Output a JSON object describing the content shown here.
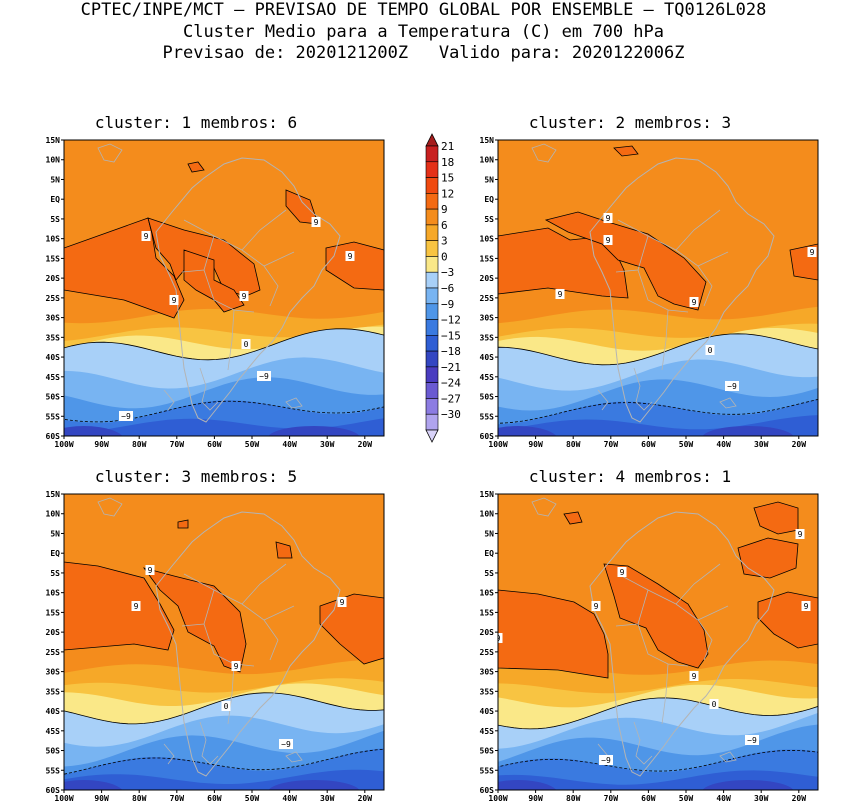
{
  "header": {
    "line1": "CPTEC/INPE/MCT – PREVISAO DE TEMPO GLOBAL POR ENSEMBLE – TQ0126L028",
    "line2": "Cluster Medio para a Temperatura (C) em 700 hPa",
    "line3": "Previsao de: 2020121200Z   Valido para: 2020122006Z"
  },
  "panels": [
    {
      "title": "cluster: 1   membros: 6"
    },
    {
      "title": "cluster: 2   membros: 3"
    },
    {
      "title": "cluster: 3   membros: 5"
    },
    {
      "title": "cluster: 4   membros: 1"
    }
  ],
  "axes": {
    "lat_labels": [
      "15N",
      "10N",
      "5N",
      "EQ",
      "5S",
      "10S",
      "15S",
      "20S",
      "25S",
      "30S",
      "35S",
      "40S",
      "45S",
      "50S",
      "55S",
      "60S"
    ],
    "lon_labels": [
      "100W",
      "90W",
      "80W",
      "70W",
      "60W",
      "50W",
      "40W",
      "30W",
      "20W"
    ]
  },
  "contour_labels": {
    "warm": "9",
    "zero": "0",
    "cold": "−9"
  },
  "colorbar": {
    "labels": [
      "21",
      "18",
      "15",
      "12",
      "9",
      "6",
      "3",
      "0",
      "−3",
      "−6",
      "−9",
      "−12",
      "−15",
      "−18",
      "−21",
      "−24",
      "−27",
      "−30"
    ],
    "colors": [
      "#a51d1d",
      "#c82020",
      "#e43018",
      "#f04a10",
      "#f46a12",
      "#f48c1c",
      "#f6a828",
      "#f8c442",
      "#fae888",
      "#a8d0f8",
      "#78b4f2",
      "#4f96e8",
      "#3a7ae0",
      "#2f5ed4",
      "#3346c2",
      "#4a3cc0",
      "#6a5ad2",
      "#8c7ce2",
      "#b0a4ee",
      "#d8d2f8"
    ]
  },
  "colors": {
    "land_border": "#b4b4b4",
    "contour": "#000000"
  }
}
